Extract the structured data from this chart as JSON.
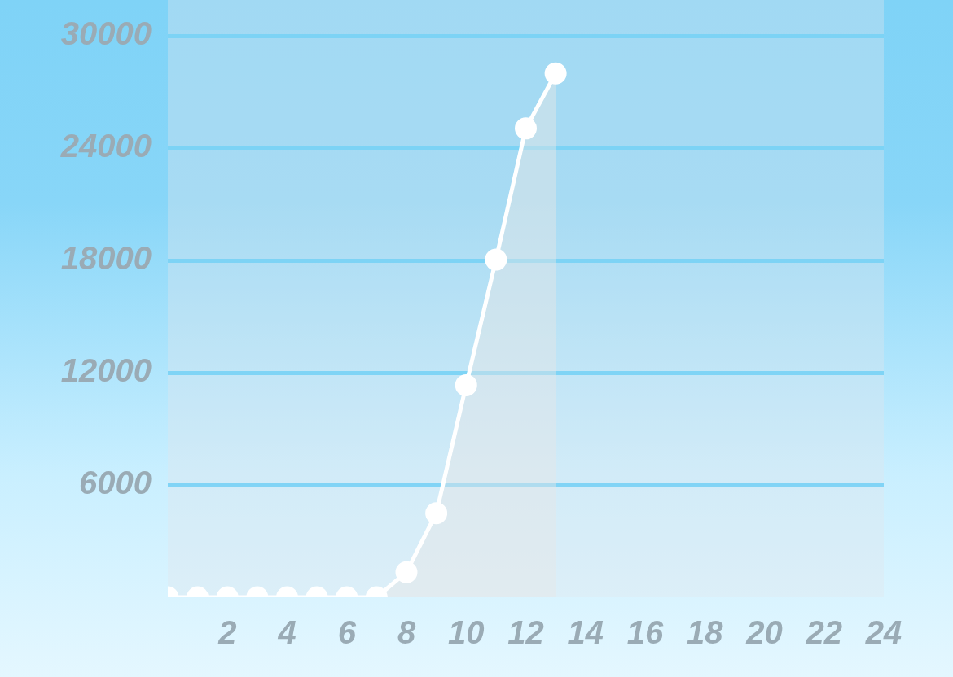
{
  "chart_data": {
    "type": "area",
    "x": [
      0,
      1,
      2,
      3,
      4,
      5,
      6,
      7,
      8,
      9,
      10,
      11,
      12,
      13
    ],
    "series": [
      {
        "color": "#ffffff",
        "values": [
          0,
          0,
          0,
          0,
          0,
          0,
          0,
          0,
          1340,
          4490,
          11330,
          18040,
          25050,
          27990
        ]
      }
    ],
    "xlim": [
      0,
      24
    ],
    "xticks": [
      2,
      4,
      6,
      8,
      10,
      12,
      14,
      16,
      18,
      20,
      22,
      24
    ],
    "ylim": [
      0,
      30000
    ],
    "yticks": [
      6000,
      12000,
      18000,
      24000,
      30000
    ],
    "grid": "y",
    "marker": "circle",
    "line_style": "solid"
  }
}
